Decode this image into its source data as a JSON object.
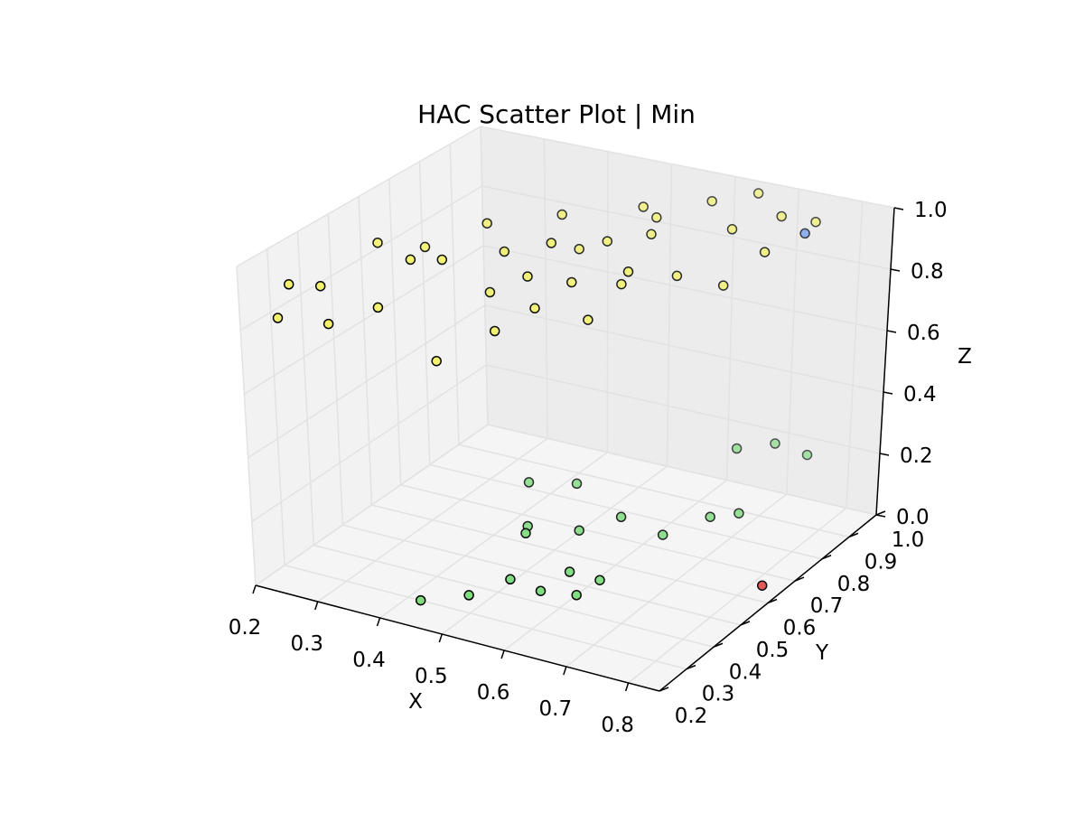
{
  "chart_data": {
    "type": "scatter",
    "projection": "3d",
    "title": "HAC Scatter Plot | Min",
    "xlabel": "X",
    "ylabel": "Y",
    "zlabel": "Z",
    "xlim": [
      0.2,
      0.85
    ],
    "ylim": [
      0.2,
      1.0
    ],
    "zlim": [
      0.0,
      1.0
    ],
    "x_ticks": [
      "0.2",
      "0.3",
      "0.4",
      "0.5",
      "0.6",
      "0.7",
      "0.8"
    ],
    "y_ticks": [
      "0.2",
      "0.3",
      "0.4",
      "0.5",
      "0.6",
      "0.7",
      "0.8",
      "0.9",
      "1.0"
    ],
    "z_ticks": [
      "0.0",
      "0.2",
      "0.4",
      "0.6",
      "0.8",
      "1.0"
    ],
    "grid": true,
    "legend": "none",
    "clusters": [
      {
        "color": "#f2f26e",
        "points": [
          [
            0.25,
            0.22,
            0.85
          ],
          [
            0.3,
            0.28,
            0.82
          ],
          [
            0.35,
            0.34,
            0.86
          ],
          [
            0.3,
            0.26,
            0.95
          ],
          [
            0.28,
            0.2,
            0.98
          ],
          [
            0.37,
            0.41,
            0.98
          ],
          [
            0.4,
            0.45,
            0.97
          ],
          [
            0.45,
            0.5,
            0.86
          ],
          [
            0.5,
            0.52,
            0.92
          ],
          [
            0.55,
            0.56,
            0.9
          ],
          [
            0.6,
            0.62,
            0.88
          ],
          [
            0.65,
            0.7,
            0.88
          ],
          [
            0.42,
            0.38,
            0.7
          ],
          [
            0.48,
            0.45,
            0.78
          ],
          [
            0.52,
            0.5,
            0.84
          ],
          [
            0.58,
            0.55,
            0.8
          ],
          [
            0.62,
            0.6,
            0.94
          ],
          [
            0.7,
            0.75,
            0.84
          ],
          [
            0.75,
            0.78,
            0.95
          ],
          [
            0.45,
            0.55,
            0.96
          ],
          [
            0.5,
            0.6,
            0.98
          ],
          [
            0.55,
            0.68,
            0.96
          ],
          [
            0.6,
            0.72,
            0.98
          ],
          [
            0.68,
            0.82,
            0.97
          ],
          [
            0.72,
            0.9,
            0.98
          ],
          [
            0.4,
            0.6,
            1.0
          ],
          [
            0.47,
            0.7,
            1.0
          ],
          [
            0.55,
            0.8,
            1.0
          ],
          [
            0.62,
            0.88,
            1.0
          ],
          [
            0.66,
            0.95,
            1.0
          ],
          [
            0.35,
            0.5,
            0.96
          ],
          [
            0.3,
            0.45,
            0.98
          ],
          [
            0.52,
            0.65,
            0.94
          ],
          [
            0.58,
            0.78,
            0.99
          ],
          [
            0.76,
            0.93,
            0.96
          ]
        ]
      },
      {
        "color": "#7fdc7f",
        "points": [
          [
            0.42,
            0.3,
            0.0
          ],
          [
            0.48,
            0.34,
            0.02
          ],
          [
            0.52,
            0.4,
            0.05
          ],
          [
            0.56,
            0.42,
            0.02
          ],
          [
            0.6,
            0.46,
            0.0
          ],
          [
            0.62,
            0.5,
            0.03
          ],
          [
            0.5,
            0.5,
            0.12
          ],
          [
            0.55,
            0.58,
            0.1
          ],
          [
            0.6,
            0.62,
            0.14
          ],
          [
            0.65,
            0.66,
            0.08
          ],
          [
            0.7,
            0.72,
            0.12
          ],
          [
            0.72,
            0.78,
            0.1
          ],
          [
            0.45,
            0.62,
            0.18
          ],
          [
            0.5,
            0.68,
            0.16
          ],
          [
            0.66,
            0.9,
            0.2
          ],
          [
            0.7,
            0.95,
            0.2
          ],
          [
            0.74,
            0.98,
            0.16
          ],
          [
            0.48,
            0.55,
            0.1
          ],
          [
            0.58,
            0.48,
            0.05
          ]
        ]
      },
      {
        "color": "#6f9cf0",
        "points": [
          [
            0.78,
            0.85,
            0.98
          ]
        ]
      },
      {
        "color": "#e05050",
        "points": [
          [
            0.84,
            0.6,
            0.05
          ]
        ]
      }
    ]
  }
}
